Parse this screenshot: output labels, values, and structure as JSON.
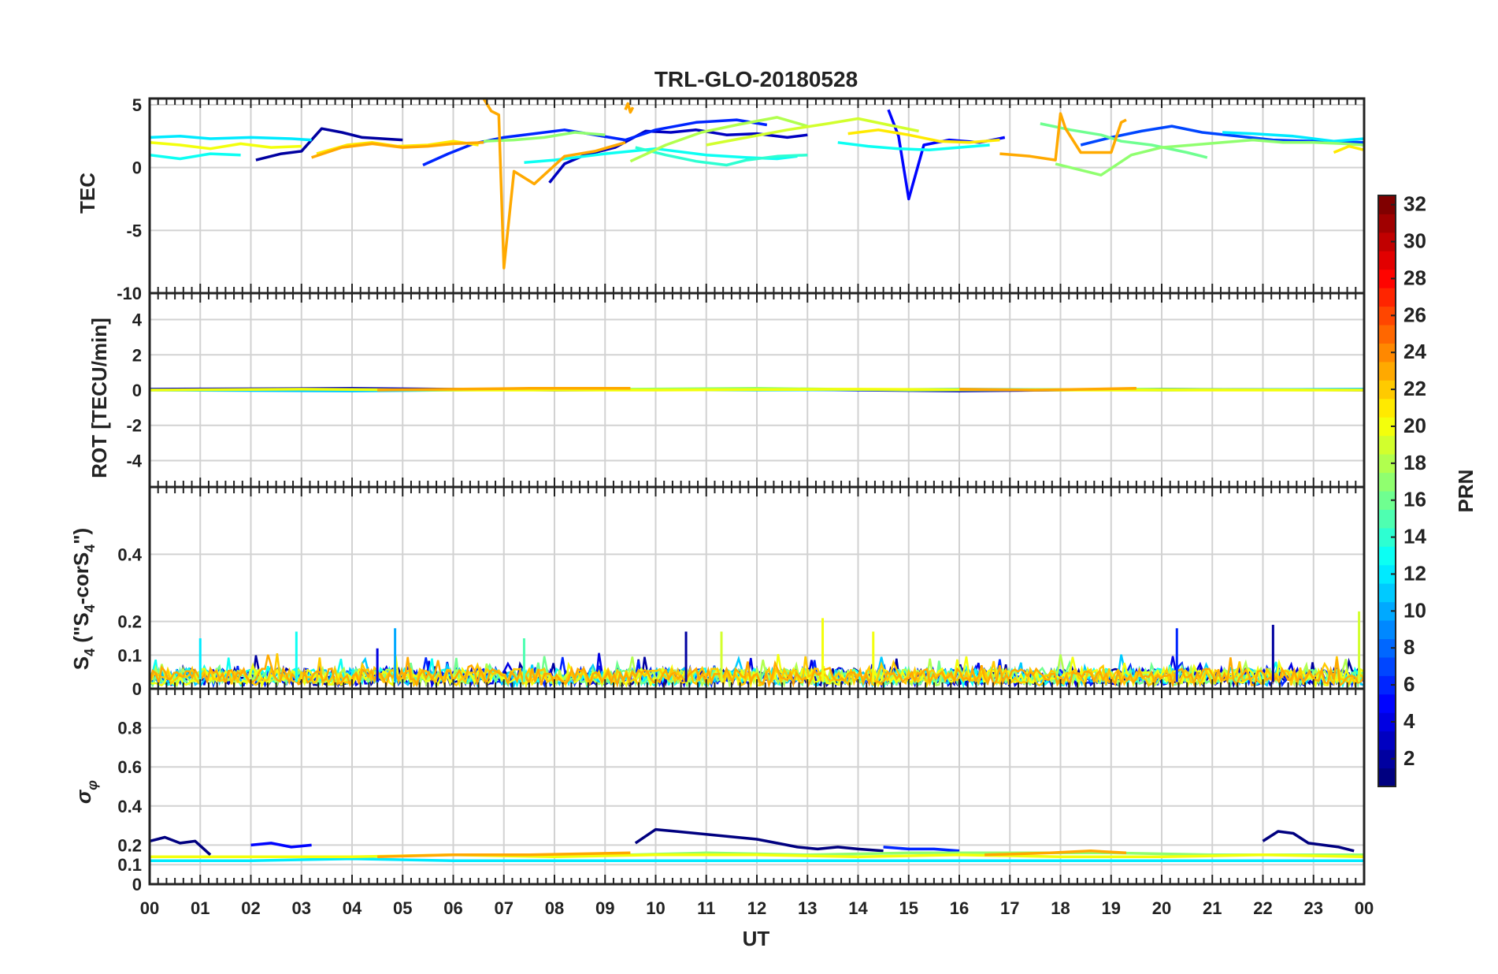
{
  "chart_data": {
    "type": "line",
    "title": "TRL-GLO-20180528",
    "xlabel": "UT",
    "x_ticks": [
      "00",
      "01",
      "02",
      "03",
      "04",
      "05",
      "06",
      "07",
      "08",
      "09",
      "10",
      "11",
      "12",
      "13",
      "14",
      "15",
      "16",
      "17",
      "18",
      "19",
      "20",
      "21",
      "22",
      "23",
      "00"
    ],
    "xlim": [
      0,
      24
    ],
    "colorbar": {
      "label": "PRN",
      "range": [
        1,
        32
      ],
      "ticks": [
        "2",
        "4",
        "6",
        "8",
        "10",
        "12",
        "14",
        "16",
        "18",
        "20",
        "22",
        "24",
        "26",
        "28",
        "30",
        "32"
      ]
    },
    "panels": [
      {
        "id": "tec",
        "ylabel": "TEC",
        "ylim": [
          -10,
          5.5
        ],
        "yticks": [
          "5",
          "0",
          "-5",
          "-10"
        ],
        "series": [
          {
            "prn": 2,
            "x": [
              2.1,
              2.6,
              3.0,
              3.4,
              3.8,
              4.2,
              4.6,
              5.0
            ],
            "y": [
              0.6,
              1.1,
              1.3,
              3.1,
              2.8,
              2.4,
              2.3,
              2.2
            ]
          },
          {
            "prn": 3,
            "x": [
              7.9,
              8.2,
              8.6,
              9.2,
              9.8,
              10.3,
              10.8,
              11.4,
              12.0,
              12.6,
              13.0
            ],
            "y": [
              -1.2,
              0.3,
              1.0,
              1.6,
              2.9,
              2.8,
              3.0,
              2.6,
              2.7,
              2.4,
              2.6
            ]
          },
          {
            "prn": 5,
            "x": [
              14.6,
              14.8,
              15.0,
              15.3,
              15.8,
              16.4,
              16.9
            ],
            "y": [
              4.6,
              2.5,
              -2.5,
              1.8,
              2.2,
              2.0,
              2.4
            ]
          },
          {
            "prn": 6,
            "x": [
              5.4,
              5.9,
              6.4,
              7.0,
              7.6,
              8.2,
              8.8,
              9.4,
              10.0,
              10.8,
              11.6,
              12.2
            ],
            "y": [
              0.2,
              1.1,
              1.9,
              2.4,
              2.7,
              3.0,
              2.6,
              2.2,
              3.0,
              3.6,
              3.8,
              3.4
            ]
          },
          {
            "prn": 7,
            "x": [
              18.4,
              19.0,
              19.6,
              20.2,
              20.8,
              21.5,
              22.2,
              23.0,
              24.0
            ],
            "y": [
              1.8,
              2.4,
              2.9,
              3.3,
              2.8,
              2.5,
              2.2,
              2.1,
              2.0
            ]
          },
          {
            "prn": 12,
            "x": [
              0.0,
              0.6,
              1.2,
              2.0,
              2.8,
              3.2
            ],
            "y": [
              2.4,
              2.5,
              2.3,
              2.4,
              2.3,
              2.2
            ]
          },
          {
            "prn": 12,
            "x": [
              21.2,
              21.8,
              22.6,
              23.4,
              24.0
            ],
            "y": [
              2.8,
              2.7,
              2.5,
              2.1,
              2.3
            ]
          },
          {
            "prn": 13,
            "x": [
              0.0,
              0.6,
              1.2,
              1.8
            ],
            "y": [
              1.0,
              0.7,
              1.1,
              1.0
            ]
          },
          {
            "prn": 13,
            "x": [
              7.4,
              8.0,
              8.6,
              9.0,
              10.0,
              11.0,
              11.8,
              12.4,
              12.8
            ],
            "y": [
              0.4,
              0.6,
              0.9,
              1.1,
              1.5,
              1.0,
              0.8,
              0.7,
              0.9
            ]
          },
          {
            "prn": 13,
            "x": [
              13.6,
              14.2,
              14.8,
              15.4,
              16.0,
              16.6
            ],
            "y": [
              2.0,
              1.7,
              1.5,
              1.4,
              1.6,
              1.8
            ]
          },
          {
            "prn": 14,
            "x": [
              9.6,
              10.2,
              10.8,
              11.4,
              11.8,
              12.4,
              13.0
            ],
            "y": [
              1.6,
              1.0,
              0.5,
              0.2,
              0.6,
              0.9,
              1.0
            ]
          },
          {
            "prn": 16,
            "x": [
              17.6,
              18.2,
              18.8,
              19.2,
              19.8,
              20.5,
              20.9
            ],
            "y": [
              3.5,
              3.0,
              2.6,
              2.1,
              1.8,
              1.2,
              0.8
            ]
          },
          {
            "prn": 17,
            "x": [
              6.6,
              7.2,
              7.8,
              8.4,
              9.0
            ],
            "y": [
              2.1,
              2.2,
              2.4,
              2.8,
              2.6
            ]
          },
          {
            "prn": 17,
            "x": [
              17.9,
              18.4,
              18.8,
              19.4,
              20.0,
              20.6,
              21.2,
              21.8,
              22.4,
              23.0,
              23.6,
              24.0
            ],
            "y": [
              0.3,
              -0.2,
              -0.6,
              1.0,
              1.6,
              1.8,
              2.0,
              2.2,
              2.0,
              2.0,
              1.9,
              1.8
            ]
          },
          {
            "prn": 18,
            "x": [
              9.5,
              10.2,
              10.9,
              11.6,
              12.4,
              13.0
            ],
            "y": [
              0.5,
              1.8,
              2.8,
              3.4,
              4.0,
              3.3
            ]
          },
          {
            "prn": 19,
            "x": [
              11.0,
              11.8,
              12.6,
              13.4,
              14.0,
              14.6,
              15.2
            ],
            "y": [
              1.8,
              2.4,
              3.0,
              3.5,
              3.9,
              3.4,
              2.9
            ]
          },
          {
            "prn": 20,
            "x": [
              0.0,
              0.6,
              1.2,
              1.8,
              2.4,
              3.0
            ],
            "y": [
              2.0,
              1.8,
              1.5,
              1.9,
              1.6,
              1.7
            ]
          },
          {
            "prn": 21,
            "x": [
              3.3,
              3.9,
              4.4,
              4.9,
              5.5,
              6.0,
              6.5
            ],
            "y": [
              1.1,
              1.8,
              2.0,
              1.7,
              1.8,
              2.1,
              1.8
            ]
          },
          {
            "prn": 21,
            "x": [
              13.8,
              14.4,
              15.0,
              15.6,
              16.2,
              16.8
            ],
            "y": [
              2.7,
              3.0,
              2.6,
              2.1,
              2.0,
              2.2
            ]
          },
          {
            "prn": 21,
            "x": [
              23.4,
              23.7,
              24.0
            ],
            "y": [
              1.2,
              1.7,
              1.4
            ]
          },
          {
            "prn": 23,
            "x": [
              3.2,
              3.8,
              4.4,
              5.0,
              5.5,
              6.0,
              6.6
            ],
            "y": [
              0.8,
              1.6,
              1.9,
              1.6,
              1.7,
              1.9,
              2.0
            ]
          },
          {
            "prn": 23,
            "x": [
              6.6,
              6.75,
              6.9,
              7.0,
              7.2,
              7.6,
              8.2,
              8.8,
              9.4
            ],
            "y": [
              5.5,
              4.5,
              4.2,
              -8.0,
              -0.3,
              -1.3,
              0.9,
              1.3,
              2.0
            ]
          },
          {
            "prn": 23,
            "x": [
              9.4,
              9.45,
              9.5,
              9.55
            ],
            "y": [
              4.6,
              5.1,
              4.4,
              4.8
            ]
          },
          {
            "prn": 23,
            "x": [
              16.8,
              17.4,
              17.9,
              18.0,
              18.1,
              18.4,
              19.0,
              19.2,
              19.3
            ],
            "y": [
              1.1,
              0.9,
              0.6,
              4.3,
              3.1,
              1.2,
              1.2,
              3.6,
              3.8
            ]
          }
        ]
      },
      {
        "id": "rot",
        "ylabel": "ROT [TECU/min]",
        "ylim": [
          -5.5,
          5.5
        ],
        "yticks": [
          "4",
          "2",
          "0",
          "-2",
          "-4"
        ],
        "series": [
          {
            "prn": 3,
            "x": [
              0,
              4,
              8,
              12,
              16,
              20,
              24
            ],
            "y": [
              0.05,
              0.1,
              0.0,
              0.05,
              -0.05,
              0.05,
              0.0
            ]
          },
          {
            "prn": 11,
            "x": [
              0,
              4,
              8,
              12,
              16,
              20,
              24
            ],
            "y": [
              0.0,
              -0.05,
              0.05,
              0.0,
              0.05,
              0.0,
              0.05
            ]
          },
          {
            "prn": 17,
            "x": [
              9.5,
              12,
              15,
              19.5,
              23
            ],
            "y": [
              0.05,
              0.1,
              0.0,
              0.05,
              0.0
            ]
          },
          {
            "prn": 20,
            "x": [
              0,
              3,
              6,
              10,
              14,
              18,
              24
            ],
            "y": [
              0.0,
              0.05,
              0.0,
              0.0,
              0.05,
              0.0,
              0.0
            ]
          },
          {
            "prn": 23,
            "x": [
              4.5,
              6,
              7.5,
              9.5
            ],
            "y": [
              0.0,
              0.05,
              0.1,
              0.1
            ]
          },
          {
            "prn": 23,
            "x": [
              16,
              17.5,
              19.5
            ],
            "y": [
              0.05,
              0.0,
              0.1
            ]
          }
        ]
      },
      {
        "id": "s4",
        "ylabel": "S4 (\"S4-corS4\")",
        "ylabel_parts": {
          "s": "S",
          "sub": "4",
          "open": " (\"S",
          "sub2": "4",
          "mid": "-corS",
          "sub3": "4",
          "close": "\")"
        },
        "ylim": [
          0,
          0.6
        ],
        "yticks": [
          "0.4",
          "0.2",
          "0.1",
          "0"
        ],
        "peak_annotations": [
          {
            "prn": 12,
            "x": 1.0,
            "y": 0.15
          },
          {
            "prn": 13,
            "x": 2.9,
            "y": 0.17
          },
          {
            "prn": 4,
            "x": 4.5,
            "y": 0.12
          },
          {
            "prn": 10,
            "x": 4.85,
            "y": 0.18
          },
          {
            "prn": 15,
            "x": 7.4,
            "y": 0.15
          },
          {
            "prn": 2,
            "x": 10.6,
            "y": 0.17
          },
          {
            "prn": 19,
            "x": 11.3,
            "y": 0.17
          },
          {
            "prn": 20,
            "x": 13.3,
            "y": 0.21
          },
          {
            "prn": 20,
            "x": 14.3,
            "y": 0.17
          },
          {
            "prn": 6,
            "x": 20.3,
            "y": 0.18
          },
          {
            "prn": 2,
            "x": 22.2,
            "y": 0.19
          },
          {
            "prn": 19,
            "x": 23.9,
            "y": 0.23
          }
        ]
      },
      {
        "id": "sigma",
        "ylabel": "σφ",
        "ylabel_parts": {
          "sigma": "σ",
          "phi": "φ"
        },
        "ylim": [
          0,
          1.0
        ],
        "yticks": [
          "0.8",
          "0.6",
          "0.4",
          "0.2",
          "0.1",
          "0"
        ],
        "series": [
          {
            "prn": 1,
            "x": [
              0.0,
              0.3,
              0.6,
              0.9,
              1.2
            ],
            "y": [
              0.22,
              0.24,
              0.21,
              0.22,
              0.15
            ]
          },
          {
            "prn": 1,
            "x": [
              9.6,
              10.0,
              10.4,
              10.8,
              11.2,
              11.6,
              12.0,
              12.4,
              12.8,
              13.2,
              13.6,
              14.0,
              14.5
            ],
            "y": [
              0.21,
              0.28,
              0.27,
              0.26,
              0.25,
              0.24,
              0.23,
              0.21,
              0.19,
              0.18,
              0.19,
              0.18,
              0.17
            ]
          },
          {
            "prn": 1,
            "x": [
              22.0,
              22.3,
              22.6,
              22.9,
              23.2,
              23.5,
              23.8
            ],
            "y": [
              0.22,
              0.27,
              0.26,
              0.21,
              0.2,
              0.19,
              0.17
            ]
          },
          {
            "prn": 5,
            "x": [
              2.0,
              2.4,
              2.8,
              3.2
            ],
            "y": [
              0.2,
              0.21,
              0.19,
              0.2
            ]
          },
          {
            "prn": 6,
            "x": [
              14.5,
              15.0,
              15.5,
              16.0
            ],
            "y": [
              0.19,
              0.18,
              0.18,
              0.17
            ]
          },
          {
            "prn": 12,
            "x": [
              0,
              2,
              4,
              6,
              8,
              10,
              12,
              14,
              16,
              18,
              20,
              22,
              24
            ],
            "y": [
              0.12,
              0.12,
              0.13,
              0.12,
              0.12,
              0.12,
              0.12,
              0.12,
              0.12,
              0.12,
              0.12,
              0.12,
              0.12
            ]
          },
          {
            "prn": 17,
            "x": [
              9.5,
              11,
              13,
              15,
              17,
              19,
              21,
              23,
              24
            ],
            "y": [
              0.15,
              0.16,
              0.15,
              0.16,
              0.16,
              0.16,
              0.15,
              0.15,
              0.15
            ]
          },
          {
            "prn": 20,
            "x": [
              0,
              2,
              4,
              6,
              8,
              10,
              12,
              14,
              16,
              18,
              20,
              22,
              24
            ],
            "y": [
              0.14,
              0.14,
              0.14,
              0.15,
              0.14,
              0.15,
              0.15,
              0.14,
              0.15,
              0.14,
              0.14,
              0.15,
              0.14
            ]
          },
          {
            "prn": 23,
            "x": [
              4.5,
              6,
              7.5,
              9.5
            ],
            "y": [
              0.14,
              0.15,
              0.15,
              0.16
            ]
          },
          {
            "prn": 23,
            "x": [
              16.5,
              17.8,
              18.6,
              19.3
            ],
            "y": [
              0.15,
              0.16,
              0.17,
              0.16
            ]
          }
        ]
      }
    ]
  }
}
